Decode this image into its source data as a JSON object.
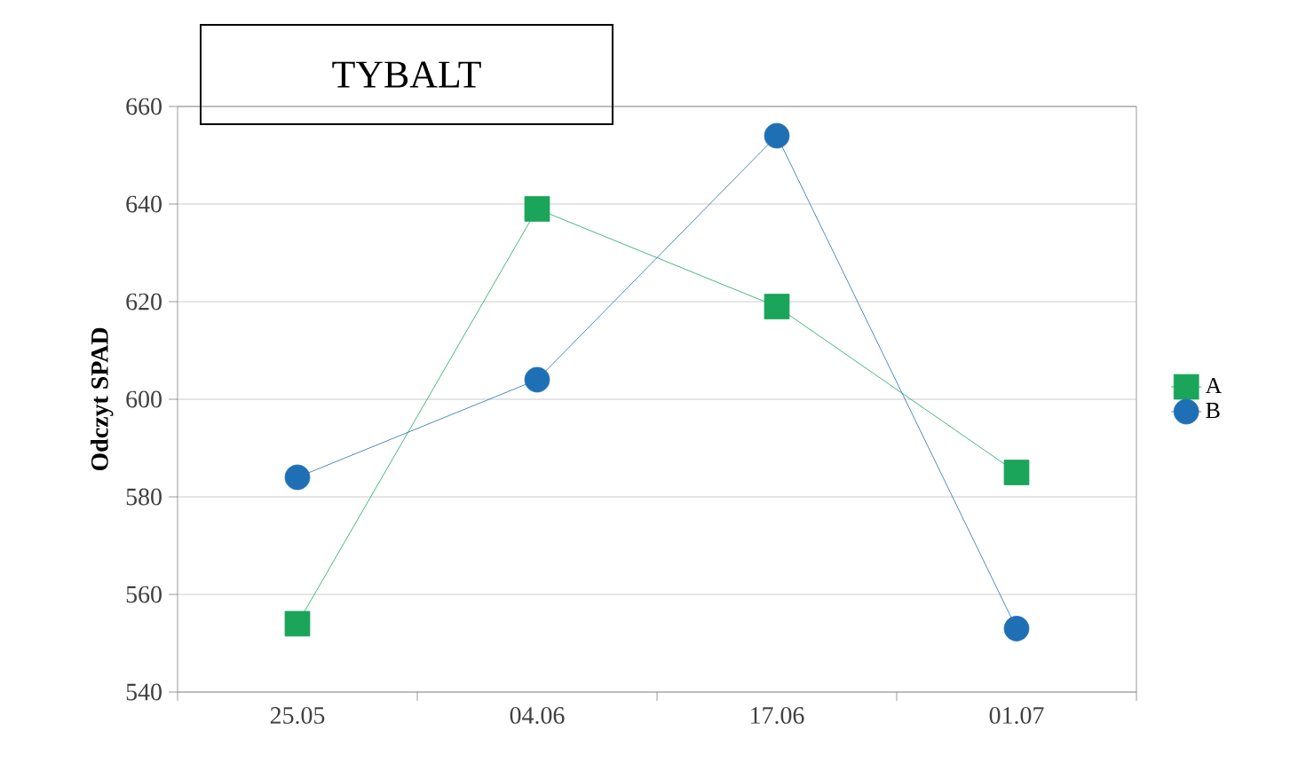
{
  "chart_data": {
    "type": "line",
    "title": "TYBALT",
    "ylabel": "Odczyt SPAD",
    "categories": [
      "25.05",
      "04.06",
      "17.06",
      "01.07"
    ],
    "series": [
      {
        "name": "A",
        "color": "#1aa55a",
        "marker": "square",
        "values": [
          554,
          639,
          619,
          585
        ]
      },
      {
        "name": "B",
        "color": "#1f6fb5",
        "marker": "circle",
        "values": [
          584,
          604,
          654,
          553
        ]
      }
    ],
    "ylim": [
      540,
      660
    ],
    "yticks": [
      540,
      560,
      580,
      600,
      620,
      640,
      660
    ],
    "grid": "y",
    "legend": "right",
    "line_style": "solid"
  }
}
